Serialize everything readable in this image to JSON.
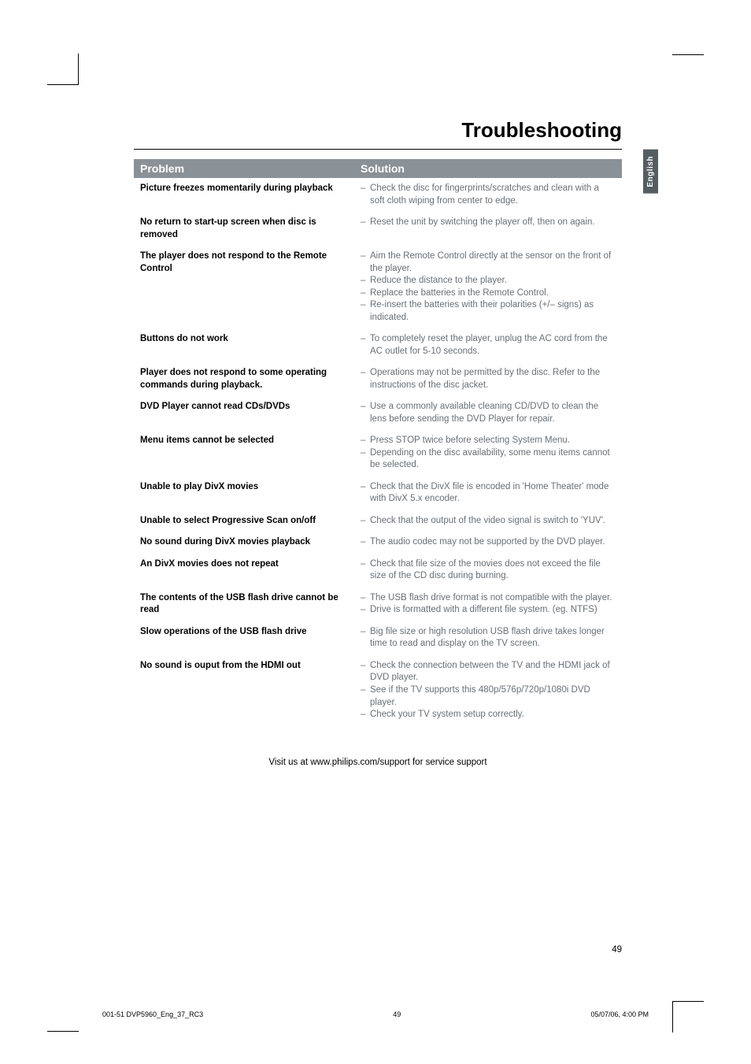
{
  "title": "Troubleshooting",
  "sideTab": "English",
  "header": {
    "problem": "Problem",
    "solution": "Solution"
  },
  "rows": [
    {
      "problem": "Picture freezes momentarily during playback",
      "solutions": [
        "Check the disc for fingerprints/scratches and clean with a soft cloth wiping from center to edge."
      ]
    },
    {
      "problem": "No return to start-up screen when disc is removed",
      "solutions": [
        "Reset the unit by switching the player off, then on again."
      ]
    },
    {
      "problem": "The player does not respond to the Remote Control",
      "solutions": [
        "Aim the Remote Control directly at the sensor on the front of the player.",
        "Reduce the distance to the player.",
        "Replace the batteries in the Remote Control.",
        "Re-insert the batteries with their polarities (+/– signs) as indicated."
      ]
    },
    {
      "problem": "Buttons do not work",
      "solutions": [
        "To completely reset the player, unplug the AC cord from the AC outlet for 5-10 seconds."
      ]
    },
    {
      "problem": "Player does not respond to some operating commands during playback.",
      "solutions": [
        "Operations may not be permitted by the disc. Refer to the instructions of  the disc jacket."
      ]
    },
    {
      "problem": "DVD Player cannot read CDs/DVDs",
      "solutions": [
        "Use a commonly available cleaning CD/DVD to clean the lens before sending the DVD Player for repair."
      ]
    },
    {
      "problem": "Menu items cannot be selected",
      "solutions": [
        "Press STOP twice before selecting System Menu.",
        "Depending on the disc availability, some menu items cannot be selected."
      ]
    },
    {
      "problem": "Unable to play DivX movies",
      "solutions": [
        "Check that the DivX file is encoded in 'Home Theater' mode with DivX 5.x encoder."
      ]
    },
    {
      "problem": "Unable to select Progressive Scan on/off",
      "solutions": [
        "Check that the output of the video signal is switch to 'YUV'."
      ]
    },
    {
      "problem": "No sound during DivX movies playback",
      "solutions": [
        "The audio codec may not be supported by the DVD player."
      ]
    },
    {
      "problem": "An DivX movies does not repeat",
      "solutions": [
        "Check that file size of the movies does not exceed the file size of the CD disc during burning."
      ]
    },
    {
      "problem": "The contents of the USB flash drive cannot be read",
      "solutions": [
        "The USB flash drive format is not compatible with the player.",
        "Drive is formatted with a different file system. (eg. NTFS)"
      ]
    },
    {
      "problem": "Slow operations of the USB flash drive",
      "solutions": [
        "Big file size or high resolution USB flash drive takes longer time to read and display on the TV screen."
      ]
    },
    {
      "problem": "No sound is ouput from the HDMI out",
      "solutions": [
        "Check the connection between the TV and the HDMI jack of DVD player.",
        "See if the TV supports this 480p/576p/720p/1080i DVD player.",
        "Check your TV system setup correctly."
      ]
    }
  ],
  "footerNote": "Visit us at www.philips.com/support for service support",
  "pageNum": "49",
  "printFooter": {
    "left": "001-51 DVP5960_Eng_37_RC3",
    "mid": "49",
    "right": "05/07/06, 4:00 PM"
  }
}
